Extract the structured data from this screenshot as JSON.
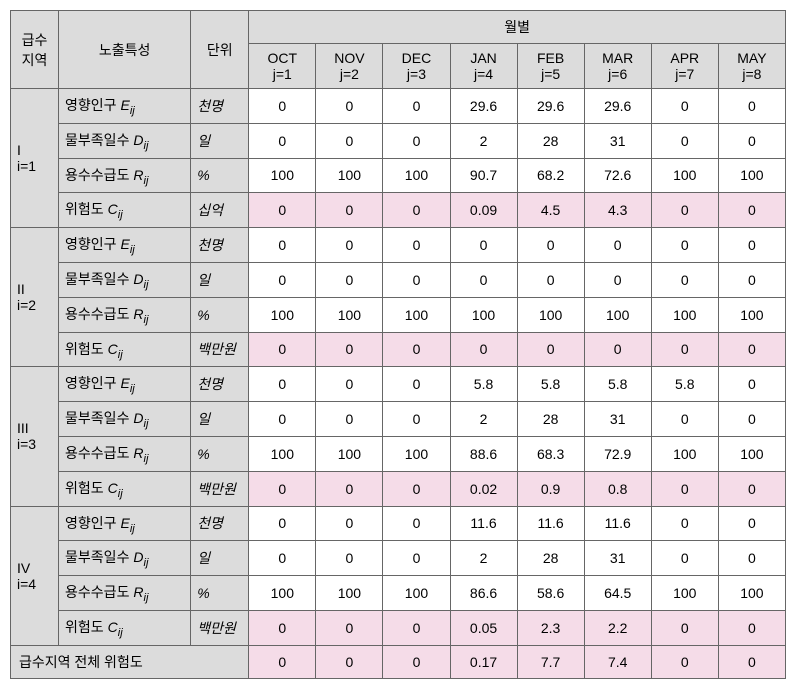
{
  "headers": {
    "region": "급수\n지역",
    "exposure": "노출특성",
    "unit": "단위",
    "monthly": "월별",
    "months": [
      {
        "top": "OCT",
        "bottom": "j=1"
      },
      {
        "top": "NOV",
        "bottom": "j=2"
      },
      {
        "top": "DEC",
        "bottom": "j=3"
      },
      {
        "top": "JAN",
        "bottom": "j=4"
      },
      {
        "top": "FEB",
        "bottom": "j=5"
      },
      {
        "top": "MAR",
        "bottom": "j=6"
      },
      {
        "top": "APR",
        "bottom": "j=7"
      },
      {
        "top": "MAY",
        "bottom": "j=8"
      }
    ]
  },
  "metric_labels": {
    "pop": {
      "prefix": "영향인구 ",
      "sym": "E",
      "sub": "ij"
    },
    "days": {
      "prefix": "물부족일수 ",
      "sym": "D",
      "sub": "ij"
    },
    "supply": {
      "prefix": "용수수급도 ",
      "sym": "R",
      "sub": "ij"
    },
    "risk": {
      "prefix": "위험도 ",
      "sym": "C",
      "sub": "ij"
    }
  },
  "units": {
    "pop": "천명",
    "days": "일",
    "supply": "%",
    "risk_1": "십억",
    "risk_234": "백만원"
  },
  "regions": [
    {
      "label_top": "I",
      "label_bottom": "i=1",
      "risk_unit": "십억",
      "pop": [
        "0",
        "0",
        "0",
        "29.6",
        "29.6",
        "29.6",
        "0",
        "0"
      ],
      "days": [
        "0",
        "0",
        "0",
        "2",
        "28",
        "31",
        "0",
        "0"
      ],
      "supply": [
        "100",
        "100",
        "100",
        "90.7",
        "68.2",
        "72.6",
        "100",
        "100"
      ],
      "risk": [
        "0",
        "0",
        "0",
        "0.09",
        "4.5",
        "4.3",
        "0",
        "0"
      ]
    },
    {
      "label_top": "II",
      "label_bottom": "i=2",
      "risk_unit": "백만원",
      "pop": [
        "0",
        "0",
        "0",
        "0",
        "0",
        "0",
        "0",
        "0"
      ],
      "days": [
        "0",
        "0",
        "0",
        "0",
        "0",
        "0",
        "0",
        "0"
      ],
      "supply": [
        "100",
        "100",
        "100",
        "100",
        "100",
        "100",
        "100",
        "100"
      ],
      "risk": [
        "0",
        "0",
        "0",
        "0",
        "0",
        "0",
        "0",
        "0"
      ]
    },
    {
      "label_top": "III",
      "label_bottom": "i=3",
      "risk_unit": "백만원",
      "pop": [
        "0",
        "0",
        "0",
        "5.8",
        "5.8",
        "5.8",
        "5.8",
        "0"
      ],
      "days": [
        "0",
        "0",
        "0",
        "2",
        "28",
        "31",
        "0",
        "0"
      ],
      "supply": [
        "100",
        "100",
        "100",
        "88.6",
        "68.3",
        "72.9",
        "100",
        "100"
      ],
      "risk": [
        "0",
        "0",
        "0",
        "0.02",
        "0.9",
        "0.8",
        "0",
        "0"
      ]
    },
    {
      "label_top": "IV",
      "label_bottom": "i=4",
      "risk_unit": "백만원",
      "pop": [
        "0",
        "0",
        "0",
        "11.6",
        "11.6",
        "11.6",
        "0",
        "0"
      ],
      "days": [
        "0",
        "0",
        "0",
        "2",
        "28",
        "31",
        "0",
        "0"
      ],
      "supply": [
        "100",
        "100",
        "100",
        "86.6",
        "58.6",
        "64.5",
        "100",
        "100"
      ],
      "risk": [
        "0",
        "0",
        "0",
        "0.05",
        "2.3",
        "2.2",
        "0",
        "0"
      ]
    }
  ],
  "total": {
    "label": "급수지역 전체 위험도",
    "values": [
      "0",
      "0",
      "0",
      "0.17",
      "7.7",
      "7.4",
      "0",
      "0"
    ]
  }
}
